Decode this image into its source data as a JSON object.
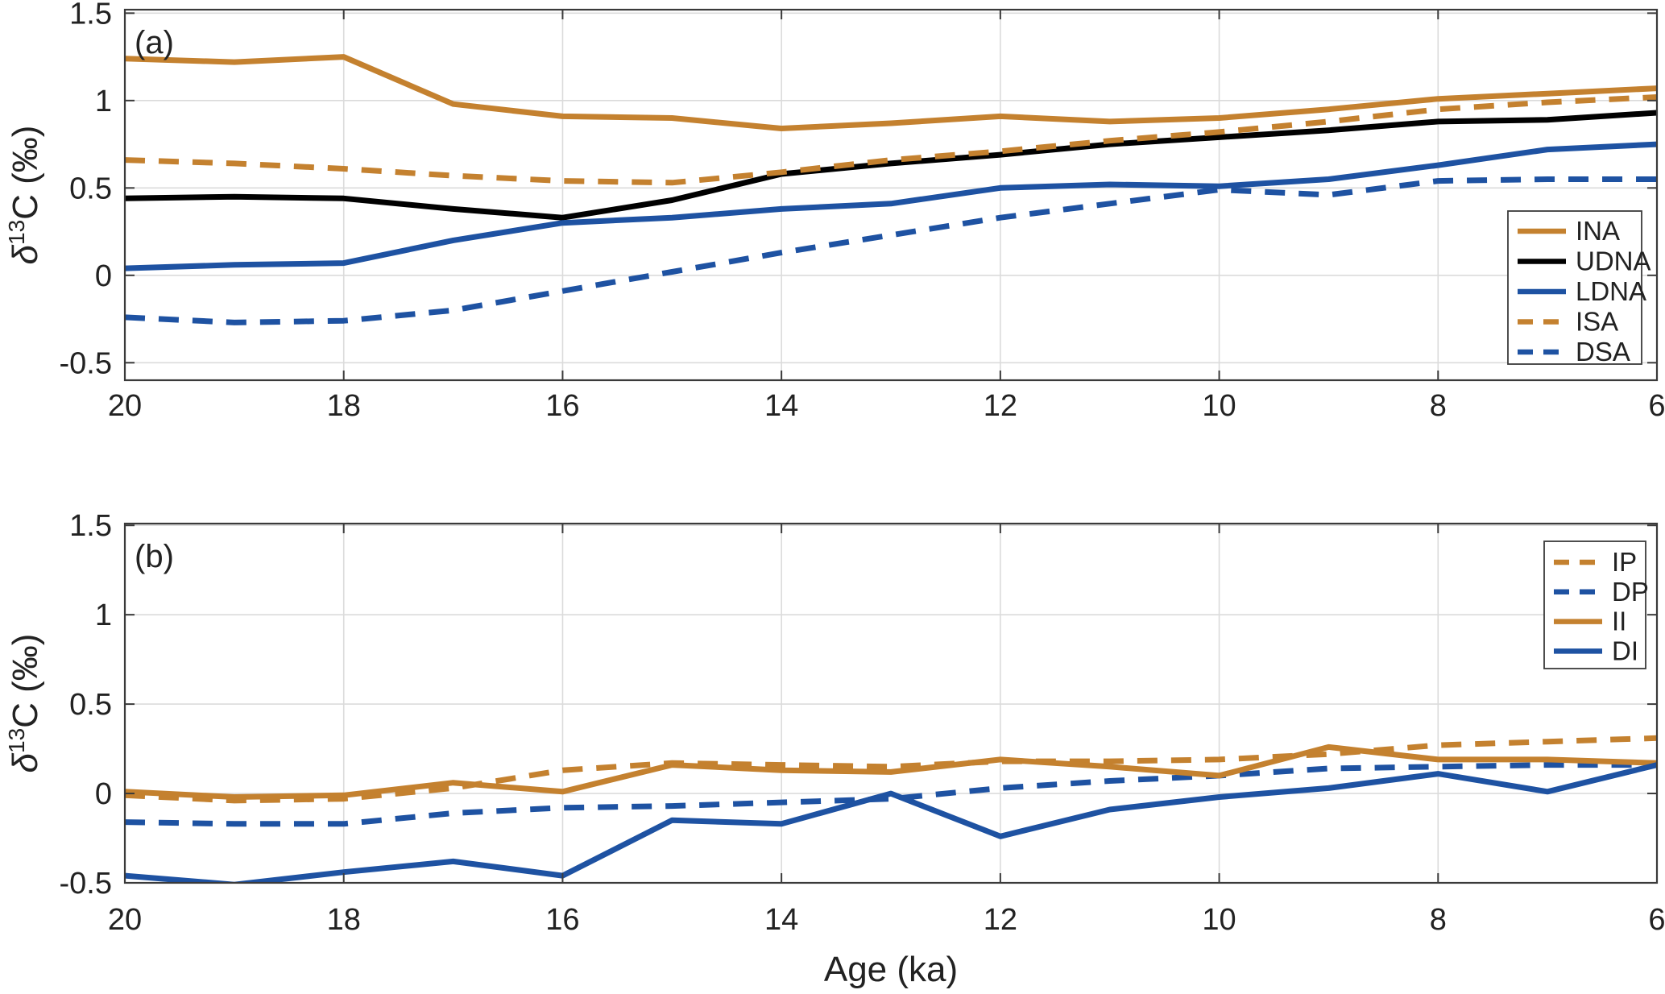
{
  "figure": {
    "background": "#ffffff",
    "panels": [
      "(a)",
      "(b)"
    ]
  },
  "colors": {
    "orange": "#C4812F",
    "blue": "#1E52A2",
    "black": "#000000",
    "grid": "#DBDBDB",
    "axis": "#3A3A3A",
    "text": "#222222",
    "legend_border": "#3A3A3A",
    "legend_bg": "#ffffff"
  },
  "chart_data": [
    {
      "id": "a",
      "type": "line",
      "panel_label": "(a)",
      "ylabel": {
        "italic": "δ",
        "sup": "13",
        "rest": "C (‰)"
      },
      "xlabel": "",
      "grid": true,
      "legend_position": "middle-right",
      "xlim": [
        20,
        6
      ],
      "ylim": [
        -0.6,
        1.52
      ],
      "xticks": [
        20,
        18,
        16,
        14,
        12,
        10,
        8,
        6
      ],
      "xtick_labels": [
        "20",
        "18",
        "16",
        "14",
        "12",
        "10",
        "8",
        "6"
      ],
      "yticks": [
        -0.5,
        0,
        0.5,
        1,
        1.5
      ],
      "ytick_labels": [
        "-0.5",
        "0",
        "0.5",
        "1",
        "1.5"
      ],
      "x": [
        20,
        19,
        18,
        17,
        16,
        15,
        14,
        13,
        12,
        11,
        10,
        9,
        8,
        7,
        6
      ],
      "series": [
        {
          "name": "INA",
          "color_key": "orange",
          "dash": false,
          "values": [
            1.24,
            1.22,
            1.25,
            0.98,
            0.91,
            0.9,
            0.84,
            0.87,
            0.91,
            0.88,
            0.9,
            0.95,
            1.01,
            1.04,
            1.07
          ]
        },
        {
          "name": "UDNA",
          "color_key": "black",
          "dash": false,
          "values": [
            0.44,
            0.45,
            0.44,
            0.38,
            0.33,
            0.43,
            0.58,
            0.64,
            0.69,
            0.75,
            0.79,
            0.83,
            0.88,
            0.89,
            0.93
          ]
        },
        {
          "name": "LDNA",
          "color_key": "blue",
          "dash": false,
          "values": [
            0.04,
            0.06,
            0.07,
            0.2,
            0.3,
            0.33,
            0.38,
            0.41,
            0.5,
            0.52,
            0.51,
            0.55,
            0.63,
            0.72,
            0.75
          ]
        },
        {
          "name": "ISA",
          "color_key": "orange",
          "dash": true,
          "values": [
            0.66,
            0.64,
            0.61,
            0.57,
            0.54,
            0.53,
            0.59,
            0.66,
            0.71,
            0.77,
            0.82,
            0.88,
            0.95,
            0.99,
            1.02
          ]
        },
        {
          "name": "DSA",
          "color_key": "blue",
          "dash": true,
          "values": [
            -0.24,
            -0.27,
            -0.26,
            -0.2,
            -0.09,
            0.02,
            0.13,
            0.23,
            0.33,
            0.41,
            0.49,
            0.46,
            0.54,
            0.55,
            0.55
          ]
        }
      ]
    },
    {
      "id": "b",
      "type": "line",
      "panel_label": "(b)",
      "ylabel": {
        "italic": "δ",
        "sup": "13",
        "rest": "C (‰)"
      },
      "xlabel": "Age (ka)",
      "grid": true,
      "legend_position": "top-right",
      "xlim": [
        20,
        6
      ],
      "ylim": [
        -0.5,
        1.51
      ],
      "xticks": [
        20,
        18,
        16,
        14,
        12,
        10,
        8,
        6
      ],
      "xtick_labels": [
        "20",
        "18",
        "16",
        "14",
        "12",
        "10",
        "8",
        "6"
      ],
      "yticks": [
        -0.5,
        0,
        0.5,
        1,
        1.5
      ],
      "ytick_labels": [
        "-0.5",
        "0",
        "0.5",
        "1",
        "1.5"
      ],
      "x": [
        20,
        19,
        18,
        17,
        16,
        15,
        14,
        13,
        12,
        11,
        10,
        9,
        8,
        7,
        6
      ],
      "series": [
        {
          "name": "IP",
          "color_key": "orange",
          "dash": true,
          "values": [
            -0.01,
            -0.04,
            -0.03,
            0.03,
            0.13,
            0.17,
            0.16,
            0.15,
            0.18,
            0.18,
            0.19,
            0.22,
            0.27,
            0.29,
            0.31
          ]
        },
        {
          "name": "DP",
          "color_key": "blue",
          "dash": true,
          "values": [
            -0.16,
            -0.17,
            -0.17,
            -0.11,
            -0.08,
            -0.07,
            -0.05,
            -0.03,
            0.03,
            0.07,
            0.1,
            0.14,
            0.15,
            0.16,
            0.16
          ]
        },
        {
          "name": "II",
          "color_key": "orange",
          "dash": false,
          "values": [
            0.01,
            -0.02,
            -0.01,
            0.06,
            0.01,
            0.16,
            0.13,
            0.12,
            0.19,
            0.15,
            0.1,
            0.26,
            0.19,
            0.19,
            0.17
          ]
        },
        {
          "name": "DI",
          "color_key": "blue",
          "dash": false,
          "values": [
            -0.46,
            -0.51,
            -0.44,
            -0.38,
            -0.46,
            -0.15,
            -0.17,
            0.0,
            -0.24,
            -0.09,
            -0.02,
            0.03,
            0.11,
            0.01,
            0.16
          ]
        }
      ]
    }
  ]
}
